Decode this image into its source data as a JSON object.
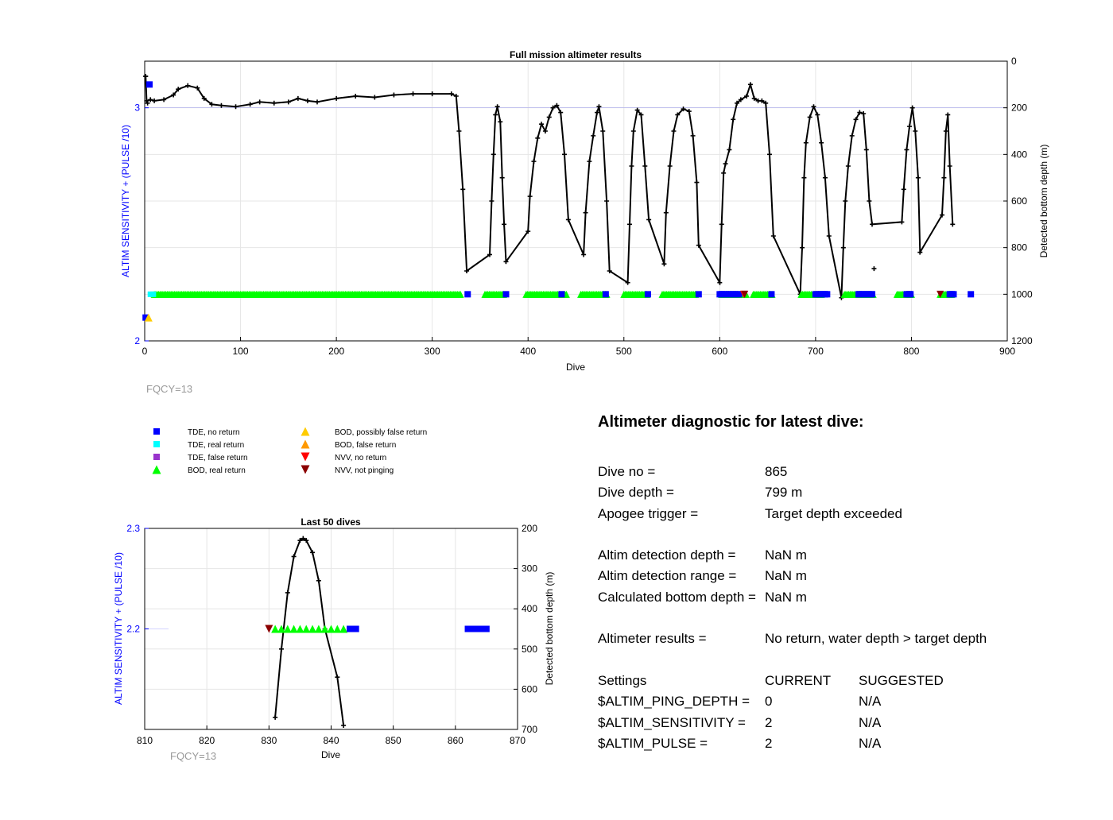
{
  "chart_data": [
    {
      "type": "scatter",
      "title": "Full mission altimeter results",
      "xlabel": "Dive",
      "ylabel_left": "ALTIM SENSITIVITY + (PULSE /10)",
      "ylabel_right": "Detected bottom depth (m)",
      "xlim": [
        0,
        900
      ],
      "ylim_left": [
        2,
        3.2
      ],
      "ylim_right": [
        1200,
        0
      ],
      "right_axis_reversed": true,
      "xticks": [
        "0",
        "100",
        "200",
        "300",
        "400",
        "500",
        "600",
        "700",
        "800",
        "900"
      ],
      "yticks_left": [
        "2",
        "3"
      ],
      "yticks_right": [
        "0",
        "200",
        "400",
        "600",
        "800",
        "1000",
        "1200"
      ],
      "grid": true,
      "note": "FQCY=13",
      "settings_line_y": 3.0,
      "bottom_depth_track": [
        [
          1,
          65
        ],
        [
          2,
          170
        ],
        [
          6,
          165
        ],
        [
          10,
          170
        ],
        [
          20,
          165
        ],
        [
          30,
          145
        ],
        [
          35,
          120
        ],
        [
          45,
          105
        ],
        [
          55,
          115
        ],
        [
          62,
          160
        ],
        [
          70,
          185
        ],
        [
          80,
          190
        ],
        [
          95,
          195
        ],
        [
          110,
          185
        ],
        [
          120,
          175
        ],
        [
          135,
          180
        ],
        [
          150,
          175
        ],
        [
          160,
          160
        ],
        [
          170,
          170
        ],
        [
          180,
          175
        ],
        [
          200,
          160
        ],
        [
          220,
          150
        ],
        [
          240,
          155
        ],
        [
          260,
          145
        ],
        [
          280,
          140
        ],
        [
          300,
          140
        ],
        [
          320,
          140
        ],
        [
          325,
          150
        ],
        [
          328,
          300
        ],
        [
          332,
          550
        ],
        [
          336,
          900
        ],
        [
          360,
          830
        ],
        [
          362,
          600
        ],
        [
          364,
          400
        ],
        [
          366,
          230
        ],
        [
          368,
          195
        ],
        [
          371,
          260
        ],
        [
          373,
          500
        ],
        [
          375,
          700
        ],
        [
          377,
          860
        ],
        [
          400,
          730
        ],
        [
          402,
          580
        ],
        [
          406,
          430
        ],
        [
          410,
          330
        ],
        [
          414,
          270
        ],
        [
          418,
          300
        ],
        [
          422,
          240
        ],
        [
          426,
          200
        ],
        [
          430,
          190
        ],
        [
          434,
          220
        ],
        [
          438,
          400
        ],
        [
          442,
          680
        ],
        [
          458,
          830
        ],
        [
          460,
          650
        ],
        [
          464,
          430
        ],
        [
          468,
          320
        ],
        [
          472,
          220
        ],
        [
          474,
          195
        ],
        [
          478,
          300
        ],
        [
          482,
          600
        ],
        [
          485,
          900
        ],
        [
          504,
          950
        ],
        [
          506,
          700
        ],
        [
          508,
          450
        ],
        [
          510,
          300
        ],
        [
          514,
          210
        ],
        [
          518,
          230
        ],
        [
          522,
          450
        ],
        [
          526,
          680
        ],
        [
          542,
          870
        ],
        [
          544,
          650
        ],
        [
          548,
          450
        ],
        [
          552,
          300
        ],
        [
          556,
          230
        ],
        [
          562,
          205
        ],
        [
          568,
          215
        ],
        [
          572,
          320
        ],
        [
          576,
          520
        ],
        [
          578,
          790
        ],
        [
          600,
          950
        ],
        [
          602,
          700
        ],
        [
          604,
          480
        ],
        [
          606,
          440
        ],
        [
          610,
          380
        ],
        [
          614,
          250
        ],
        [
          618,
          180
        ],
        [
          622,
          165
        ],
        [
          628,
          150
        ],
        [
          632,
          100
        ],
        [
          636,
          160
        ],
        [
          640,
          170
        ],
        [
          644,
          170
        ],
        [
          648,
          180
        ],
        [
          652,
          400
        ],
        [
          656,
          750
        ],
        [
          684,
          1000
        ],
        [
          686,
          800
        ],
        [
          688,
          500
        ],
        [
          690,
          350
        ],
        [
          694,
          240
        ],
        [
          698,
          195
        ],
        [
          702,
          230
        ],
        [
          706,
          350
        ],
        [
          710,
          500
        ],
        [
          714,
          750
        ],
        [
          727,
          1015
        ],
        [
          729,
          800
        ],
        [
          731,
          600
        ],
        [
          734,
          450
        ],
        [
          738,
          320
        ],
        [
          742,
          250
        ],
        [
          746,
          220
        ],
        [
          750,
          225
        ],
        [
          753,
          380
        ],
        [
          756,
          600
        ],
        [
          759,
          700
        ],
        [
          790,
          690
        ],
        [
          792,
          550
        ],
        [
          795,
          380
        ],
        [
          798,
          280
        ],
        [
          801,
          200
        ],
        [
          804,
          300
        ],
        [
          807,
          500
        ],
        [
          809,
          820
        ],
        [
          832,
          660
        ],
        [
          834,
          500
        ],
        [
          836,
          300
        ],
        [
          838,
          230
        ],
        [
          840,
          450
        ],
        [
          843,
          700
        ]
      ],
      "bottom_depth_extra_points": [
        [
          1,
          65
        ],
        [
          3,
          180
        ],
        [
          761,
          890
        ]
      ],
      "series": [
        {
          "name": "TDE, no return",
          "marker": "square",
          "color": "#0000ff",
          "points": [
            [
              1,
              2.1
            ],
            [
              5,
              3.1
            ],
            [
              337,
              2.2
            ],
            [
              377,
              2.2
            ],
            [
              435,
              2.2
            ],
            [
              481,
              2.2
            ],
            [
              525,
              2.2
            ],
            [
              578,
              2.2
            ],
            [
              602,
              2.2
            ],
            [
              654,
              2.2
            ],
            [
              710,
              2.2
            ],
            [
              745,
              2.2
            ],
            [
              798,
              2.2
            ],
            [
              842,
              2.2
            ],
            [
              862,
              2.2
            ]
          ],
          "bars": [
            [
              600,
              620
            ],
            [
              700,
              712
            ],
            [
              745,
              760
            ],
            [
              795,
              800
            ],
            [
              840,
              845
            ]
          ]
        },
        {
          "name": "TDE, real return",
          "marker": "square",
          "color": "#00ffff",
          "points": [
            [
              6,
              2.2
            ],
            [
              9,
              2.2
            ]
          ]
        },
        {
          "name": "TDE, false return",
          "marker": "square",
          "color": "#9933cc",
          "points": []
        },
        {
          "name": "BOD, real return",
          "marker": "triangle-up",
          "color": "#00ff00",
          "ranges": [
            [
              10,
              330
            ],
            [
              355,
              375
            ],
            [
              398,
              440
            ],
            [
              455,
              482
            ],
            [
              500,
              525
            ],
            [
              540,
              575
            ],
            [
              602,
              628
            ],
            [
              635,
              655
            ],
            [
              685,
              706
            ],
            [
              730,
              760
            ],
            [
              785,
              800
            ],
            [
              830,
              842
            ]
          ]
        },
        {
          "name": "BOD, possibly false return",
          "marker": "triangle-up",
          "color": "#ffcc00",
          "points": [
            [
              4,
              2.1
            ]
          ]
        },
        {
          "name": "BOD, false return",
          "marker": "triangle-up",
          "color": "#ff9900",
          "points": []
        },
        {
          "name": "NVV, no return",
          "marker": "triangle-down",
          "color": "#ff0000",
          "points": [
            [
              625,
              2.2
            ]
          ]
        },
        {
          "name": "NVV, not pinging",
          "marker": "triangle-down",
          "color": "#8b0000",
          "points": [
            [
              626,
              2.2
            ],
            [
              830,
              2.2
            ]
          ]
        }
      ]
    },
    {
      "type": "scatter",
      "title": "Last 50 dives",
      "xlabel": "Dive",
      "ylabel_left": "ALTIM SENSITIVITY + (PULSE /10)",
      "ylabel_right": "Detected bottom depth (m)",
      "xlim": [
        810,
        870
      ],
      "ylim_left": [
        2.1,
        2.3
      ],
      "ylim_right": [
        700,
        200
      ],
      "xticks": [
        "810",
        "820",
        "830",
        "840",
        "850",
        "860",
        "870"
      ],
      "yticks_left": [
        "2.3",
        "2.2"
      ],
      "yticks_right": [
        "200",
        "300",
        "400",
        "500",
        "600",
        "700"
      ],
      "grid": true,
      "note": "FQCY=13",
      "bottom_depth_track": [
        [
          831,
          670
        ],
        [
          832,
          500
        ],
        [
          833,
          360
        ],
        [
          834,
          270
        ],
        [
          835,
          230
        ],
        [
          835.5,
          225
        ],
        [
          836,
          230
        ],
        [
          837,
          260
        ],
        [
          838,
          330
        ],
        [
          839,
          450
        ],
        [
          841,
          570
        ],
        [
          842,
          690
        ]
      ],
      "bod_range": [
        831,
        842
      ],
      "tde_no_return_bars": [
        [
          842.5,
          844.5
        ],
        [
          861.5,
          865.5
        ]
      ],
      "nvv_not_pinging": [
        [
          830,
          2.2
        ]
      ]
    }
  ],
  "legend": [
    {
      "label": "TDE, no return",
      "marker": "square",
      "color": "#0000ff"
    },
    {
      "label": "TDE, real return",
      "marker": "square",
      "color": "#00ffff"
    },
    {
      "label": "TDE, false return",
      "marker": "square",
      "color": "#9933cc"
    },
    {
      "label": "BOD, real return",
      "marker": "triangle-up",
      "color": "#00ff00"
    },
    {
      "label": "BOD, possibly false return",
      "marker": "triangle-up",
      "color": "#ffcc00"
    },
    {
      "label": "BOD, false return",
      "marker": "triangle-up",
      "color": "#ff9900"
    },
    {
      "label": "NVV, no return",
      "marker": "triangle-down",
      "color": "#ff0000"
    },
    {
      "label": "NVV, not pinging",
      "marker": "triangle-down",
      "color": "#8b0000"
    }
  ],
  "diagnostic": {
    "title": "Altimeter diagnostic for latest dive:",
    "dive_no_label": "Dive no =",
    "dive_no": "865",
    "dive_depth_label": "Dive depth =",
    "dive_depth": "799 m",
    "apogee_label": "Apogee trigger =",
    "apogee": "Target depth exceeded",
    "altim_det_depth_label": "Altim detection depth =",
    "altim_det_depth": "NaN m",
    "altim_det_range_label": "Altim detection range =",
    "altim_det_range": "NaN m",
    "calc_bottom_label": "Calculated bottom depth =",
    "calc_bottom": "NaN m",
    "results_label": "Altimeter results =",
    "results": "No return, water depth > target depth",
    "settings_label": "Settings",
    "current_label": "CURRENT",
    "suggested_label": "SUGGESTED",
    "ping_depth_label": "$ALTIM_PING_DEPTH =",
    "ping_depth_current": "0",
    "ping_depth_suggested": "N/A",
    "sensitivity_label": "$ALTIM_SENSITIVITY =",
    "sensitivity_current": "2",
    "sensitivity_suggested": "N/A",
    "pulse_label": "$ALTIM_PULSE =",
    "pulse_current": "2",
    "pulse_suggested": "N/A"
  },
  "colors": {
    "left_axis": "#0000ff",
    "track": "#000000",
    "grid": "#e6e6e6",
    "note": "#999999"
  }
}
